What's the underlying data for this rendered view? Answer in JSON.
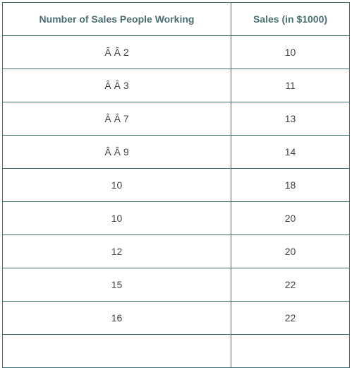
{
  "table": {
    "headers": [
      "Number of Sales People Working",
      "Sales (in $1000)"
    ],
    "rows": [
      [
        "Â Â 2",
        "10"
      ],
      [
        "Â Â 3",
        "11"
      ],
      [
        "Â Â 7",
        "13"
      ],
      [
        "Â Â 9",
        "14"
      ],
      [
        "10",
        "18"
      ],
      [
        "10",
        "20"
      ],
      [
        "12",
        "20"
      ],
      [
        "15",
        "22"
      ],
      [
        "16",
        "22"
      ],
      [
        "",
        ""
      ]
    ]
  },
  "colors": {
    "border": "#3f6f74",
    "header_text": "#4a6f72",
    "cell_text": "#444444"
  }
}
